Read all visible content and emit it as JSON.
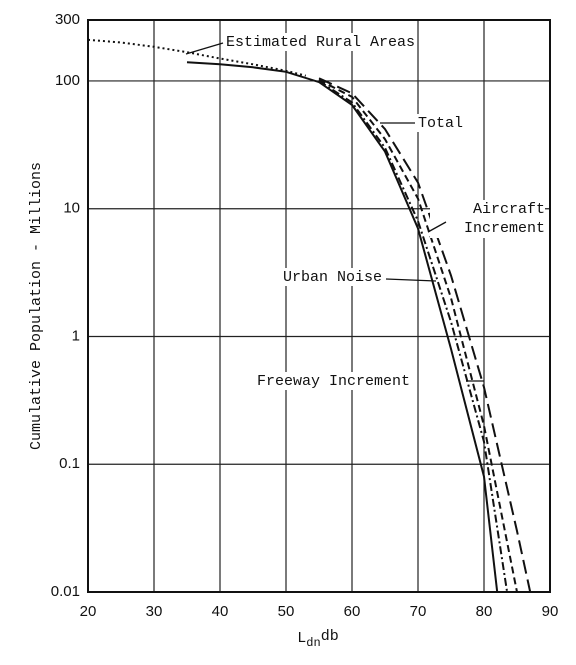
{
  "chart_data": {
    "type": "line",
    "y_label": "Cumulative Population - Millions",
    "x_label": [
      "L",
      "dn",
      "db"
    ],
    "xlim": [
      20,
      90
    ],
    "xticks": [
      20,
      30,
      40,
      50,
      60,
      70,
      80,
      90
    ],
    "ylim": [
      0.01,
      300
    ],
    "yticks": [
      300,
      100,
      10,
      1,
      0.1,
      0.01
    ],
    "log_y": true,
    "grid": true,
    "series": [
      {
        "name": "Estimated Rural Areas",
        "color": "#111111",
        "dash": "2 3",
        "x": [
          20,
          25,
          30,
          35,
          40,
          45,
          50,
          53
        ],
        "values": [
          210,
          200,
          185,
          168,
          150,
          135,
          120,
          110
        ]
      },
      {
        "name": "Total",
        "color": "#111111",
        "dash": "14 6",
        "x": [
          55,
          60,
          65,
          70,
          75,
          80,
          85,
          87
        ],
        "values": [
          105,
          80,
          42,
          16,
          3,
          0.4,
          0.03,
          0.01
        ]
      },
      {
        "name": "Aircraft Increment",
        "color": "#111111",
        "dash": "7 4",
        "x": [
          55,
          60,
          65,
          70,
          75,
          80,
          85
        ],
        "values": [
          102,
          75,
          35,
          12,
          2,
          0.2,
          0.01
        ]
      },
      {
        "name": "Urban Noise",
        "color": "#111111",
        "dash": "none",
        "x": [
          35,
          40,
          45,
          50,
          55,
          60,
          65,
          70,
          75,
          80,
          82
        ],
        "values": [
          140,
          135,
          128,
          118,
          98,
          65,
          28,
          7,
          0.8,
          0.08,
          0.01
        ]
      },
      {
        "name": "Freeway Increment",
        "color": "#111111",
        "dash": "8 3 2 3",
        "x": [
          55,
          60,
          65,
          70,
          75,
          80,
          83.5
        ],
        "values": [
          100,
          68,
          30,
          8,
          1.3,
          0.15,
          0.01
        ]
      }
    ]
  }
}
